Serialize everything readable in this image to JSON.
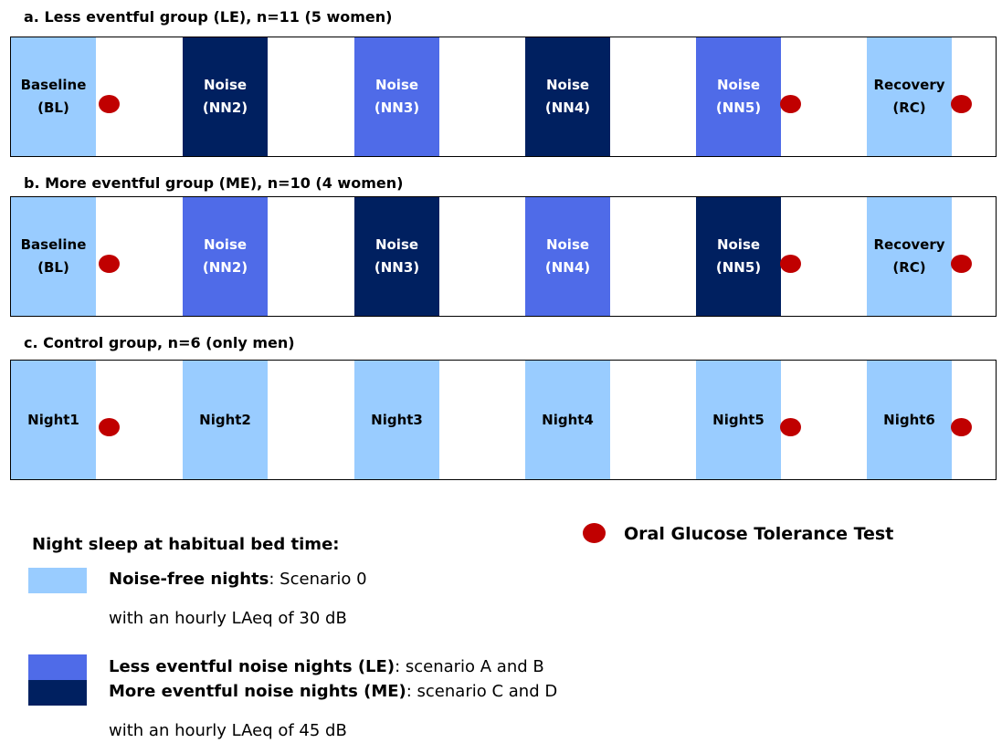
{
  "colors": {
    "noise_free": "#99CCFF",
    "less_eventful": "#4F6BE8",
    "more_eventful": "#002060",
    "ogtt_marker": "#C00000"
  },
  "groups": [
    {
      "title": "a. Less eventful group (LE), n=11 (5 women)",
      "nights": [
        {
          "line1": "Baseline",
          "line2": "(BL)",
          "kind": "noise_free",
          "ogtt": true
        },
        {
          "line1": "Noise",
          "line2": "(NN2)",
          "kind": "more_eventful",
          "ogtt": false
        },
        {
          "line1": "Noise",
          "line2": "(NN3)",
          "kind": "less_eventful",
          "ogtt": false
        },
        {
          "line1": "Noise",
          "line2": "(NN4)",
          "kind": "more_eventful",
          "ogtt": false
        },
        {
          "line1": "Noise",
          "line2": "(NN5)",
          "kind": "less_eventful",
          "ogtt": true
        },
        {
          "line1": "Recovery",
          "line2": "(RC)",
          "kind": "noise_free",
          "ogtt": true
        }
      ]
    },
    {
      "title": "b. More eventful group (ME), n=10 (4 women)",
      "nights": [
        {
          "line1": "Baseline",
          "line2": "(BL)",
          "kind": "noise_free",
          "ogtt": true
        },
        {
          "line1": "Noise",
          "line2": "(NN2)",
          "kind": "less_eventful",
          "ogtt": false
        },
        {
          "line1": "Noise",
          "line2": "(NN3)",
          "kind": "more_eventful",
          "ogtt": false
        },
        {
          "line1": "Noise",
          "line2": "(NN4)",
          "kind": "less_eventful",
          "ogtt": false
        },
        {
          "line1": "Noise",
          "line2": "(NN5)",
          "kind": "more_eventful",
          "ogtt": true
        },
        {
          "line1": "Recovery",
          "line2": "(RC)",
          "kind": "noise_free",
          "ogtt": true
        }
      ]
    },
    {
      "title": "c. Control group, n=6 (only men)",
      "nights": [
        {
          "line1": "Night1",
          "line2": "",
          "kind": "noise_free",
          "ogtt": true
        },
        {
          "line1": "Night2",
          "line2": "",
          "kind": "noise_free",
          "ogtt": false
        },
        {
          "line1": "Night3",
          "line2": "",
          "kind": "noise_free",
          "ogtt": false
        },
        {
          "line1": "Night4",
          "line2": "",
          "kind": "noise_free",
          "ogtt": false
        },
        {
          "line1": "Night5",
          "line2": "",
          "kind": "noise_free",
          "ogtt": true
        },
        {
          "line1": "Night6",
          "line2": "",
          "kind": "noise_free",
          "ogtt": true
        }
      ]
    }
  ],
  "legend": {
    "title": "Night sleep at habitual bed time:",
    "ogtt_label": "Oral Glucose Tolerance Test",
    "noise_free_bold": "Noise-free nights",
    "noise_free_rest": ": Scenario 0",
    "noise_free_level": "with an hourly LAeq of 30 dB",
    "le_bold": "Less eventful noise nights (LE)",
    "le_rest": ": scenario A and B",
    "me_bold": "More eventful noise nights (ME)",
    "me_rest": ": scenario C and D",
    "noise_level": "with an hourly LAeq of 45 dB"
  }
}
